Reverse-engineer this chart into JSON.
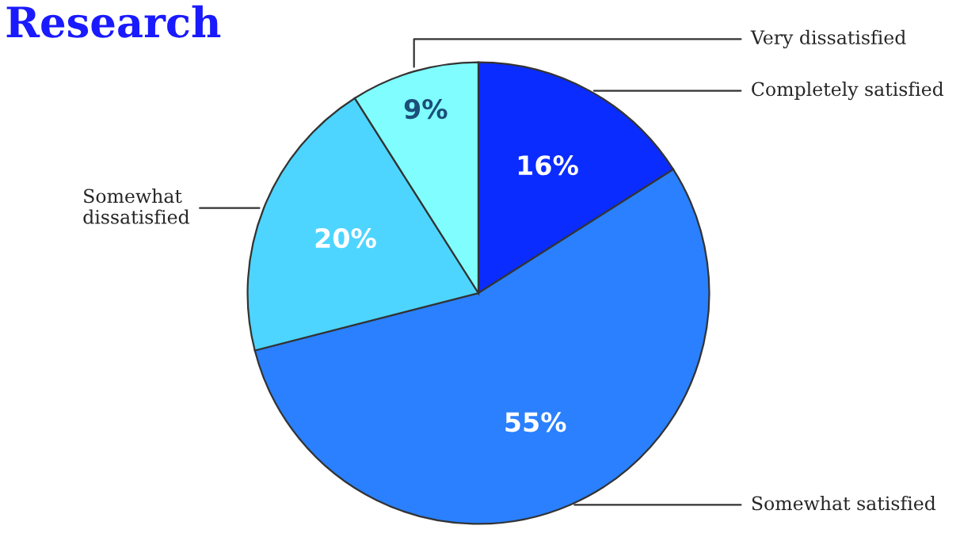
{
  "chart_data": {
    "type": "pie",
    "title": "Research",
    "categories": [
      "Completely satisfied",
      "Somewhat satisfied",
      "Somewhat dissatisfied",
      "Very dissatisfied"
    ],
    "values": [
      16,
      55,
      20,
      9
    ],
    "colors": [
      "#0a2cff",
      "#2a80ff",
      "#4dd5ff",
      "#80fdff"
    ],
    "value_labels": [
      "16%",
      "55%",
      "20%",
      "9%"
    ],
    "legend": false
  }
}
